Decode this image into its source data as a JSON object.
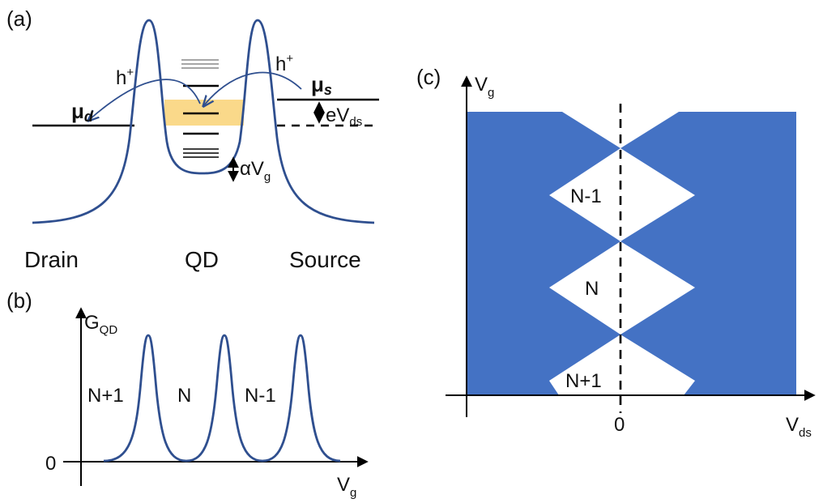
{
  "colors": {
    "curve": "#2f4f8f",
    "diamond_fill": "#4472c4",
    "highlight": "#fad98a",
    "line": "#000000"
  },
  "panel_a": {
    "label": "(a)",
    "mu_d": "μ",
    "mu_d_sub": "d",
    "mu_s": "μ",
    "mu_s_sub": "s",
    "hole_left": "h",
    "hole_right": "h",
    "hole_sup": "+",
    "bias": "eV",
    "bias_sub": "ds",
    "gate_shift": "αV",
    "gate_shift_sub": "g",
    "drain": "Drain",
    "qd": "QD",
    "source": "Source"
  },
  "panel_b": {
    "label": "(b)",
    "y_axis": "G",
    "y_axis_sub": "QD",
    "x_axis": "V",
    "x_axis_sub": "g",
    "zero": "0",
    "regions": [
      "N+1",
      "N",
      "N-1"
    ]
  },
  "panel_c": {
    "label": "(c)",
    "y_axis": "V",
    "y_axis_sub": "g",
    "x_axis": "V",
    "x_axis_sub": "ds",
    "zero": "0",
    "diamonds": [
      "N-1",
      "N",
      "N+1"
    ]
  }
}
